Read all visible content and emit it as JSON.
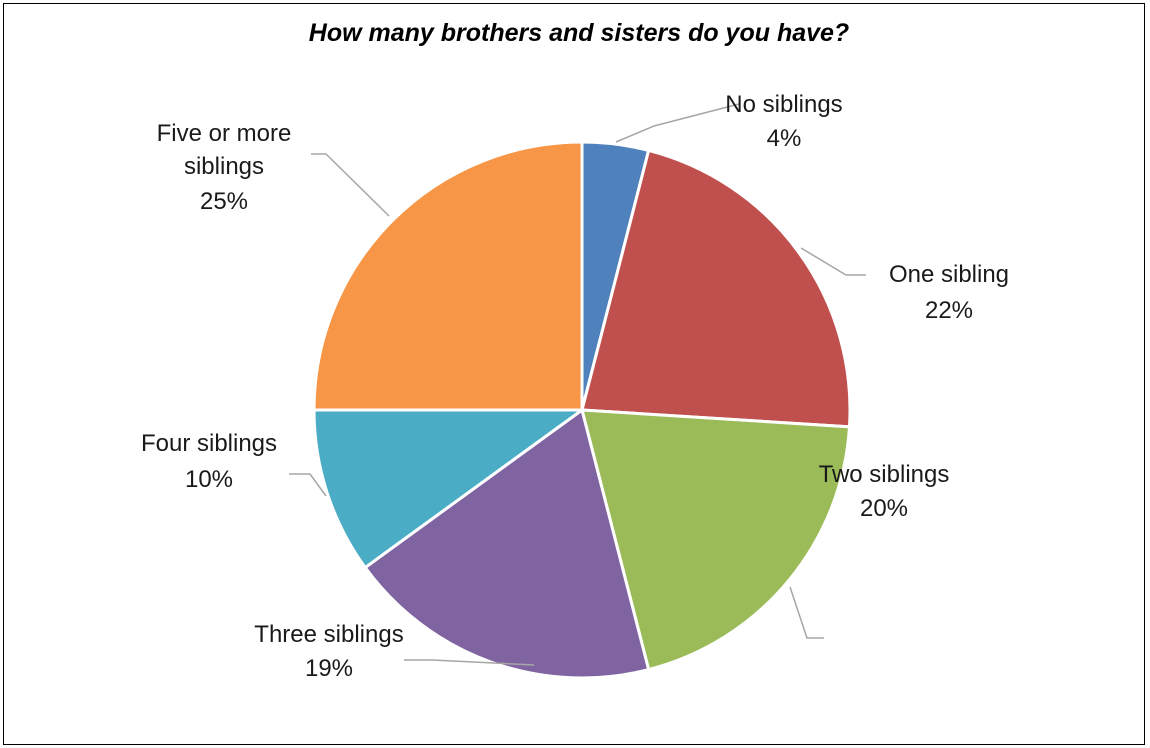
{
  "chart_data": {
    "type": "pie",
    "title": "How many brothers and sisters do you have?",
    "categories": [
      "No siblings",
      "One sibling",
      "Two siblings",
      "Three siblings",
      "Four siblings",
      "Five or more siblings"
    ],
    "values": [
      4,
      22,
      20,
      19,
      10,
      25
    ],
    "value_labels": [
      "4%",
      "22%",
      "20%",
      "19%",
      "10%",
      "25%"
    ],
    "colors": [
      "#4f81bd",
      "#c0504d",
      "#9bbb59",
      "#8064a2",
      "#4bacc6",
      "#f79646"
    ],
    "start_angle_deg": 0,
    "direction": "clockwise",
    "legend": "none",
    "data_labels": "outside-with-leader-lines"
  }
}
